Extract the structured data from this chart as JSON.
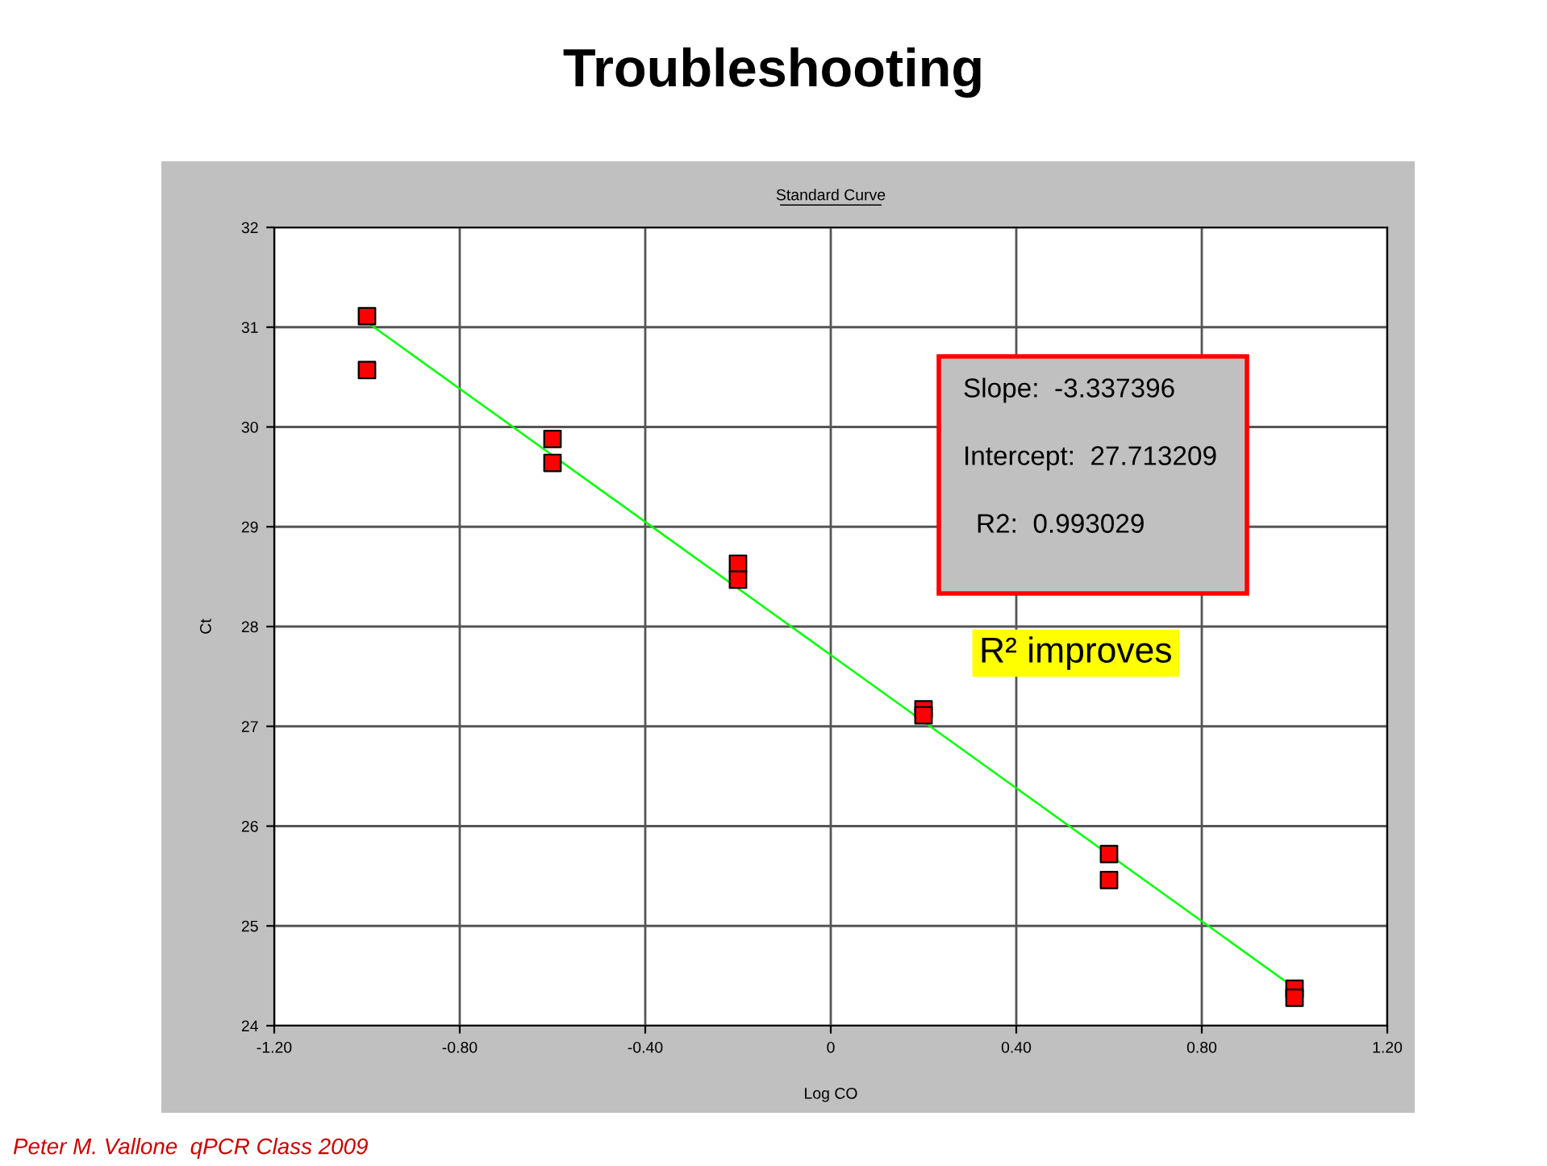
{
  "chart_data": {
    "type": "scatter",
    "title": "Troubleshooting",
    "subtitle": "Standard Curve",
    "xlabel": "Log CO",
    "ylabel": "Ct",
    "xlim": [
      -1.2,
      1.2
    ],
    "xticks": [
      {
        "value": -1.2,
        "label": "-1.20"
      },
      {
        "value": -0.8,
        "label": "-0.80"
      },
      {
        "value": -0.4,
        "label": "-0.40"
      },
      0,
      {
        "value": 0.4,
        "label": "0.40"
      },
      {
        "value": 0.8,
        "label": "0.80"
      },
      {
        "value": 1.2,
        "label": "1.20"
      }
    ],
    "ylim": [
      24,
      32
    ],
    "yticks": [
      24,
      25,
      26,
      27,
      28,
      29,
      30,
      31,
      32
    ],
    "grid": true,
    "series": [
      {
        "marker": "square",
        "color": "#ff0000",
        "x": [
          -1,
          -1,
          -0.6,
          -0.6,
          -0.2,
          -0.2,
          0.2,
          0.2,
          0.6,
          0.6,
          1,
          1
        ],
        "values": [
          31.11,
          30.57,
          29.88,
          29.64,
          28.63,
          28.47,
          27.17,
          27.11,
          25.72,
          25.46,
          24.37,
          24.28
        ]
      },
      {
        "type": "line",
        "marker": "none",
        "color": "#00ff00",
        "x": [
          -1,
          1
        ],
        "values": [
          31.05,
          24.38
        ]
      }
    ],
    "annotations": [
      "Slope:  -3.337396",
      "Intercept:  27.713209",
      "R2:  0.993029",
      "R² improves",
      "Peter M. Vallone  qPCR Class 2009"
    ]
  }
}
